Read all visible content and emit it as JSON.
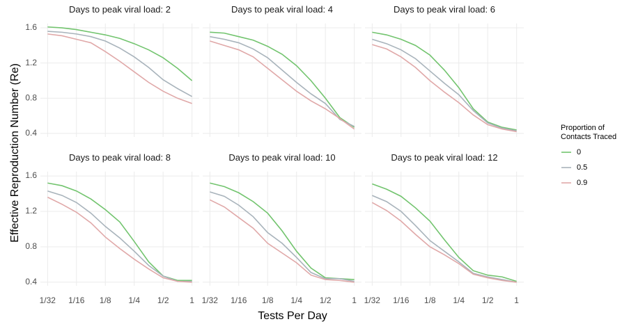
{
  "y_label": "Effective Reproduction Number (Re)",
  "x_label": "Tests Per Day",
  "legend_title": [
    "Proportion of",
    "Contacts Traced"
  ],
  "legend_position": "right",
  "chart_data": [
    {
      "type": "line",
      "title": "Days to peak viral load: 2",
      "x": [
        0.03125,
        0.0442,
        0.0625,
        0.0884,
        0.125,
        0.1768,
        0.25,
        0.3536,
        0.5,
        0.7071,
        1
      ],
      "series": [
        {
          "name": "0",
          "color": "#72c46e",
          "values": [
            1.61,
            1.6,
            1.58,
            1.55,
            1.52,
            1.48,
            1.42,
            1.35,
            1.26,
            1.14,
            1.0
          ]
        },
        {
          "name": "0.5",
          "color": "#a8b3bb",
          "values": [
            1.56,
            1.55,
            1.53,
            1.5,
            1.45,
            1.37,
            1.27,
            1.15,
            1.01,
            0.91,
            0.82
          ]
        },
        {
          "name": "0.9",
          "color": "#e0a8a8",
          "values": [
            1.53,
            1.51,
            1.47,
            1.43,
            1.33,
            1.22,
            1.1,
            0.98,
            0.88,
            0.8,
            0.74
          ]
        }
      ],
      "xscale": "log2",
      "xlim": [
        0.0263,
        1.189
      ],
      "ylim": [
        0.36,
        1.65
      ],
      "xticks": [
        {
          "value": 0.03125,
          "label": "1/32"
        },
        {
          "value": 0.0625,
          "label": "1/16"
        },
        {
          "value": 0.125,
          "label": "1/8"
        },
        {
          "value": 0.25,
          "label": "1/4"
        },
        {
          "value": 0.5,
          "label": "1/2"
        },
        1
      ],
      "yticks": [
        0.4,
        0.8,
        1.2,
        1.6
      ],
      "grid": true
    },
    {
      "type": "line",
      "title": "Days to peak viral load: 4",
      "x": [
        0.03125,
        0.0442,
        0.0625,
        0.0884,
        0.125,
        0.1768,
        0.25,
        0.3536,
        0.5,
        0.7071,
        1
      ],
      "series": [
        {
          "name": "0",
          "color": "#72c46e",
          "values": [
            1.55,
            1.54,
            1.5,
            1.46,
            1.39,
            1.3,
            1.17,
            1.0,
            0.8,
            0.58,
            0.47
          ]
        },
        {
          "name": "0.5",
          "color": "#a8b3bb",
          "values": [
            1.5,
            1.47,
            1.43,
            1.36,
            1.26,
            1.12,
            0.98,
            0.85,
            0.74,
            0.56,
            0.48
          ]
        },
        {
          "name": "0.9",
          "color": "#e0a8a8",
          "values": [
            1.45,
            1.4,
            1.35,
            1.27,
            1.14,
            1.01,
            0.88,
            0.77,
            0.68,
            0.57,
            0.45
          ]
        }
      ],
      "xscale": "log2",
      "xlim": [
        0.0263,
        1.189
      ],
      "ylim": [
        0.36,
        1.65
      ],
      "xticks": [
        {
          "value": 0.03125,
          "label": "1/32"
        },
        {
          "value": 0.0625,
          "label": "1/16"
        },
        {
          "value": 0.125,
          "label": "1/8"
        },
        {
          "value": 0.25,
          "label": "1/4"
        },
        {
          "value": 0.5,
          "label": "1/2"
        },
        1
      ],
      "yticks": [
        0.4,
        0.8,
        1.2,
        1.6
      ],
      "grid": true
    },
    {
      "type": "line",
      "title": "Days to peak viral load: 6",
      "x": [
        0.03125,
        0.0442,
        0.0625,
        0.0884,
        0.125,
        0.1768,
        0.25,
        0.3536,
        0.5,
        0.7071,
        1
      ],
      "series": [
        {
          "name": "0",
          "color": "#72c46e",
          "values": [
            1.55,
            1.52,
            1.47,
            1.4,
            1.29,
            1.12,
            0.92,
            0.68,
            0.53,
            0.47,
            0.44
          ]
        },
        {
          "name": "0.5",
          "color": "#a8b3bb",
          "values": [
            1.47,
            1.42,
            1.35,
            1.25,
            1.11,
            0.97,
            0.84,
            0.66,
            0.52,
            0.46,
            0.43
          ]
        },
        {
          "name": "0.9",
          "color": "#e0a8a8",
          "values": [
            1.41,
            1.36,
            1.27,
            1.15,
            1.0,
            0.87,
            0.75,
            0.61,
            0.5,
            0.45,
            0.42
          ]
        }
      ],
      "xscale": "log2",
      "xlim": [
        0.0263,
        1.189
      ],
      "ylim": [
        0.36,
        1.65
      ],
      "xticks": [
        {
          "value": 0.03125,
          "label": "1/32"
        },
        {
          "value": 0.0625,
          "label": "1/16"
        },
        {
          "value": 0.125,
          "label": "1/8"
        },
        {
          "value": 0.25,
          "label": "1/4"
        },
        {
          "value": 0.5,
          "label": "1/2"
        },
        1
      ],
      "yticks": [
        0.4,
        0.8,
        1.2,
        1.6
      ],
      "grid": true
    },
    {
      "type": "line",
      "title": "Days to peak viral load: 8",
      "x": [
        0.03125,
        0.0442,
        0.0625,
        0.0884,
        0.125,
        0.1768,
        0.25,
        0.3536,
        0.5,
        0.7071,
        1
      ],
      "series": [
        {
          "name": "0",
          "color": "#72c46e",
          "values": [
            1.52,
            1.49,
            1.43,
            1.34,
            1.22,
            1.08,
            0.86,
            0.63,
            0.47,
            0.42,
            0.42
          ]
        },
        {
          "name": "0.5",
          "color": "#a8b3bb",
          "values": [
            1.43,
            1.38,
            1.3,
            1.18,
            1.03,
            0.9,
            0.75,
            0.59,
            0.47,
            0.41,
            0.41
          ]
        },
        {
          "name": "0.9",
          "color": "#e0a8a8",
          "values": [
            1.36,
            1.28,
            1.19,
            1.07,
            0.91,
            0.78,
            0.66,
            0.55,
            0.45,
            0.41,
            0.4
          ]
        }
      ],
      "xscale": "log2",
      "xlim": [
        0.0263,
        1.189
      ],
      "ylim": [
        0.36,
        1.65
      ],
      "xticks": [
        {
          "value": 0.03125,
          "label": "1/32"
        },
        {
          "value": 0.0625,
          "label": "1/16"
        },
        {
          "value": 0.125,
          "label": "1/8"
        },
        {
          "value": 0.25,
          "label": "1/4"
        },
        {
          "value": 0.5,
          "label": "1/2"
        },
        1
      ],
      "yticks": [
        0.4,
        0.8,
        1.2,
        1.6
      ],
      "grid": true
    },
    {
      "type": "line",
      "title": "Days to peak viral load: 10",
      "x": [
        0.03125,
        0.0442,
        0.0625,
        0.0884,
        0.125,
        0.1768,
        0.25,
        0.3536,
        0.5,
        0.7071,
        1
      ],
      "series": [
        {
          "name": "0",
          "color": "#72c46e",
          "values": [
            1.52,
            1.48,
            1.41,
            1.31,
            1.18,
            0.98,
            0.75,
            0.56,
            0.45,
            0.44,
            0.43
          ]
        },
        {
          "name": "0.5",
          "color": "#a8b3bb",
          "values": [
            1.42,
            1.37,
            1.27,
            1.14,
            0.96,
            0.84,
            0.68,
            0.51,
            0.44,
            0.44,
            0.41
          ]
        },
        {
          "name": "0.9",
          "color": "#e0a8a8",
          "values": [
            1.33,
            1.25,
            1.13,
            1.01,
            0.84,
            0.73,
            0.62,
            0.48,
            0.43,
            0.42,
            0.4
          ]
        }
      ],
      "xscale": "log2",
      "xlim": [
        0.0263,
        1.189
      ],
      "ylim": [
        0.36,
        1.65
      ],
      "xticks": [
        {
          "value": 0.03125,
          "label": "1/32"
        },
        {
          "value": 0.0625,
          "label": "1/16"
        },
        {
          "value": 0.125,
          "label": "1/8"
        },
        {
          "value": 0.25,
          "label": "1/4"
        },
        {
          "value": 0.5,
          "label": "1/2"
        },
        1
      ],
      "yticks": [
        0.4,
        0.8,
        1.2,
        1.6
      ],
      "grid": true
    },
    {
      "type": "line",
      "title": "Days to peak viral load: 12",
      "x": [
        0.03125,
        0.0442,
        0.0625,
        0.0884,
        0.125,
        0.1768,
        0.25,
        0.3536,
        0.5,
        0.7071,
        1
      ],
      "series": [
        {
          "name": "0",
          "color": "#72c46e",
          "values": [
            1.51,
            1.45,
            1.37,
            1.24,
            1.09,
            0.88,
            0.68,
            0.53,
            0.48,
            0.46,
            0.41
          ]
        },
        {
          "name": "0.5",
          "color": "#a8b3bb",
          "values": [
            1.38,
            1.31,
            1.2,
            1.04,
            0.87,
            0.75,
            0.63,
            0.5,
            0.46,
            0.43,
            0.4
          ]
        },
        {
          "name": "0.9",
          "color": "#e0a8a8",
          "values": [
            1.3,
            1.21,
            1.09,
            0.94,
            0.8,
            0.71,
            0.61,
            0.49,
            0.45,
            0.42,
            0.4
          ]
        }
      ],
      "xscale": "log2",
      "xlim": [
        0.0263,
        1.189
      ],
      "ylim": [
        0.36,
        1.65
      ],
      "xticks": [
        {
          "value": 0.03125,
          "label": "1/32"
        },
        {
          "value": 0.0625,
          "label": "1/16"
        },
        {
          "value": 0.125,
          "label": "1/8"
        },
        {
          "value": 0.25,
          "label": "1/4"
        },
        {
          "value": 0.5,
          "label": "1/2"
        },
        1
      ],
      "yticks": [
        0.4,
        0.8,
        1.2,
        1.6
      ],
      "grid": true
    }
  ]
}
